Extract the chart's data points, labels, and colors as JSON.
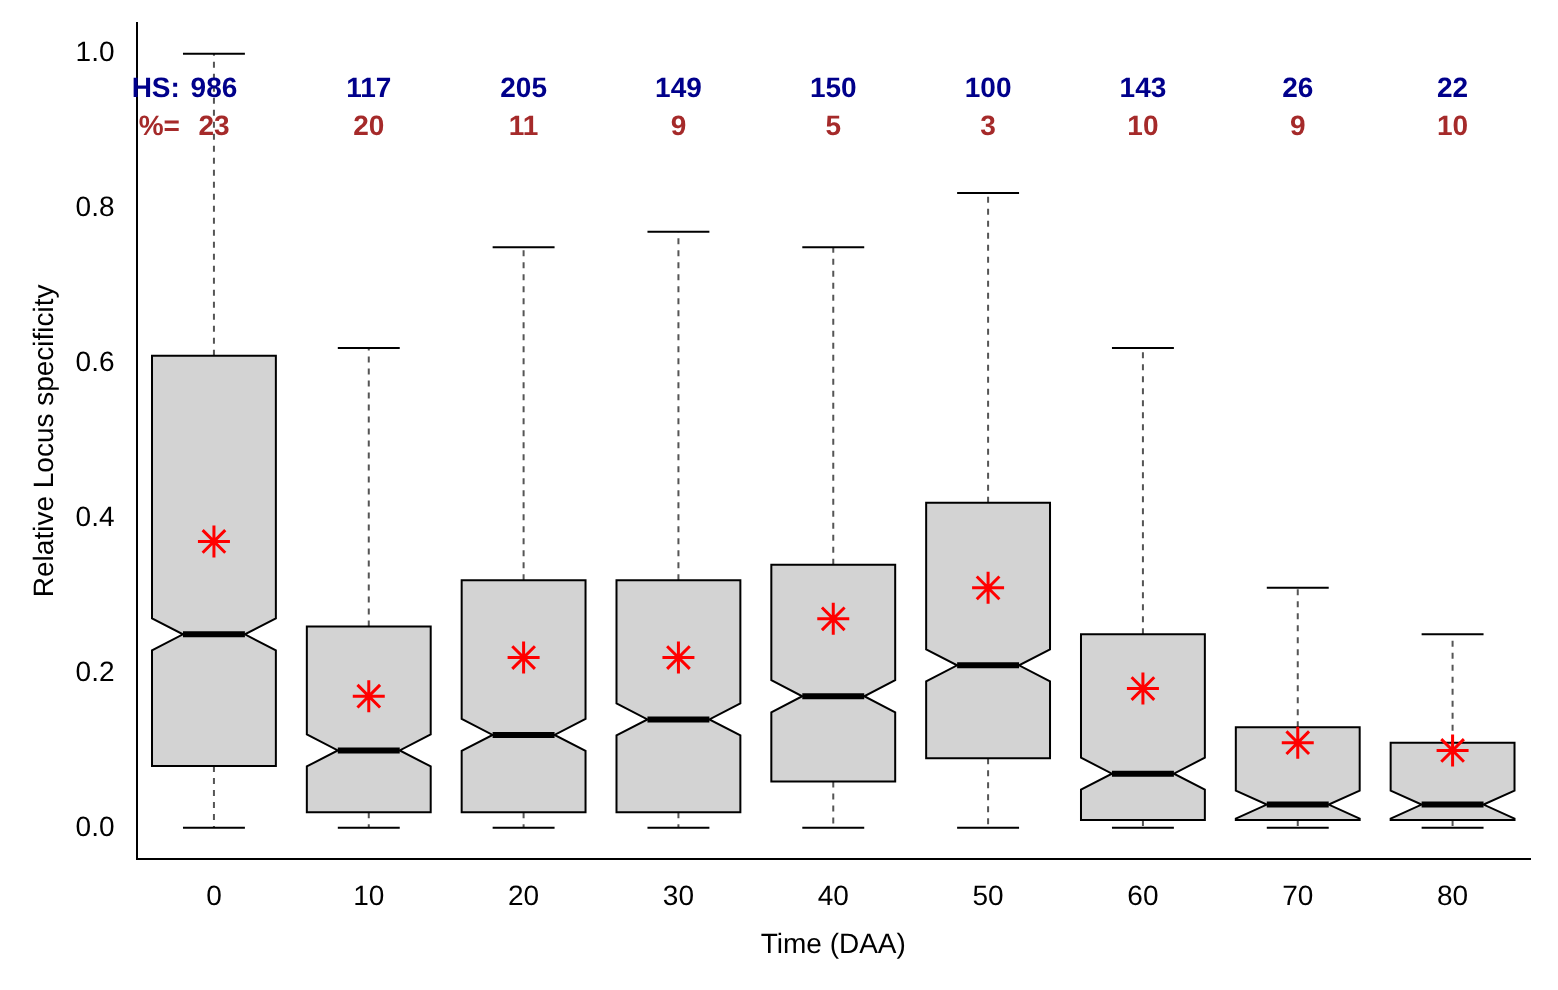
{
  "chart_data": {
    "type": "box",
    "xlabel": "Time (DAA)",
    "ylabel": "Relative Locus specificity",
    "categories": [
      "0",
      "10",
      "20",
      "30",
      "40",
      "50",
      "60",
      "70",
      "80"
    ],
    "color": "#d3d3d3",
    "marker": "star",
    "ylim": [
      -0.04,
      1.04
    ],
    "yticks": [
      {
        "value": 0,
        "label": "0.0"
      },
      0.2,
      0.4,
      0.6,
      0.8,
      {
        "value": 1,
        "label": "1.0"
      }
    ],
    "boxes": [
      {
        "low": 0,
        "q1": 0.08,
        "median": 0.25,
        "q3": 0.61,
        "high": 1,
        "mean": 0.37
      },
      {
        "low": 0,
        "q1": 0.02,
        "median": 0.1,
        "q3": 0.26,
        "high": 0.62,
        "mean": 0.17
      },
      {
        "low": 0,
        "q1": 0.02,
        "median": 0.12,
        "q3": 0.32,
        "high": 0.75,
        "mean": 0.22
      },
      {
        "low": 0,
        "q1": 0.02,
        "median": 0.14,
        "q3": 0.32,
        "high": 0.77,
        "mean": 0.22
      },
      {
        "low": 0,
        "q1": 0.06,
        "median": 0.17,
        "q3": 0.34,
        "high": 0.75,
        "mean": 0.27
      },
      {
        "low": 0,
        "q1": 0.09,
        "median": 0.21,
        "q3": 0.42,
        "high": 0.82,
        "mean": 0.31
      },
      {
        "low": 0,
        "q1": 0.01,
        "median": 0.07,
        "q3": 0.25,
        "high": 0.62,
        "mean": 0.18
      },
      {
        "low": 0,
        "q1": 0.01,
        "median": 0.03,
        "q3": 0.13,
        "high": 0.31,
        "mean": 0.11
      },
      {
        "low": 0,
        "q1": 0.01,
        "median": 0.03,
        "q3": 0.11,
        "high": 0.25,
        "mean": 0.1
      }
    ],
    "annotations": [
      "HS:",
      "986",
      "117",
      "205",
      "149",
      "150",
      "100",
      "143",
      "26",
      "22",
      "%=",
      "23",
      "20",
      "11",
      "9",
      "5",
      "3",
      "10",
      "9",
      "10"
    ]
  }
}
